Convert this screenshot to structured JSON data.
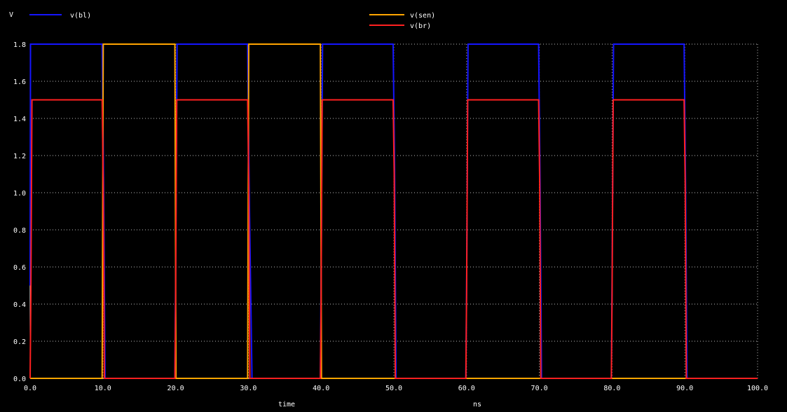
{
  "chart_data": {
    "type": "line",
    "y_unit": "V",
    "xlabel": "time",
    "x_unit": "ns",
    "xlim": [
      0,
      100
    ],
    "ylim": [
      0,
      1.8
    ],
    "x_ticks": [
      "0.0",
      "10.0",
      "20.0",
      "30.0",
      "40.0",
      "50.0",
      "60.0",
      "70.0",
      "80.0",
      "90.0",
      "100.0"
    ],
    "y_ticks": [
      "0.0",
      "0.2",
      "0.4",
      "0.6",
      "0.8",
      "1.0",
      "1.2",
      "1.4",
      "1.6",
      "1.8"
    ],
    "grid": true,
    "legend_placement": "top",
    "series": [
      {
        "name": "v(bl)",
        "color": "#1515ff",
        "x": [
          0,
          0.05,
          0.2,
          9.9,
          10.1,
          10.3,
          10.5,
          19.9,
          20.0,
          20.2,
          29.9,
          30.1,
          30.5,
          39.9,
          40.0,
          40.2,
          49.9,
          50.1,
          50.3,
          59.9,
          60.0,
          60.2,
          69.9,
          70.1,
          70.3,
          79.9,
          80.0,
          80.2,
          89.9,
          90.1,
          90.3,
          100
        ],
        "y": [
          0.5,
          1.8,
          1.8,
          1.8,
          1.05,
          0.0,
          0.0,
          0.0,
          0.55,
          1.8,
          1.8,
          1.05,
          0.0,
          0.0,
          0.55,
          1.8,
          1.8,
          1.15,
          0.0,
          0.0,
          0.5,
          1.8,
          1.8,
          1.05,
          0.0,
          0.0,
          0.55,
          1.8,
          1.8,
          1.05,
          0.0,
          0.0
        ]
      },
      {
        "name": "v(sen)",
        "color": "#ffa500",
        "x": [
          0,
          9.9,
          10.05,
          19.9,
          20.05,
          29.9,
          30.05,
          39.9,
          40.05,
          49.9,
          50.05,
          59.9,
          60.05,
          69.9,
          70.05,
          79.9,
          80.05,
          89.9,
          90.05,
          100
        ],
        "y": [
          0.0,
          0.0,
          1.8,
          1.8,
          0.0,
          0.0,
          1.8,
          1.8,
          0.0,
          0.0,
          0.0,
          0.0,
          0.0,
          0.0,
          0.0,
          0.0,
          0.0,
          0.0,
          0.0,
          0.0
        ]
      },
      {
        "name": "v(br)",
        "color": "#ff2020",
        "x": [
          0,
          0.1,
          0.25,
          9.9,
          10.05,
          10.2,
          19.9,
          20.0,
          20.15,
          29.9,
          30.05,
          30.2,
          39.9,
          40.0,
          40.15,
          49.9,
          50.05,
          50.2,
          59.9,
          60.0,
          60.15,
          69.9,
          70.05,
          70.2,
          79.9,
          80.0,
          80.15,
          89.9,
          90.05,
          90.2,
          100
        ],
        "y": [
          0.0,
          0.45,
          1.5,
          1.5,
          1.05,
          0.0,
          0.0,
          0.45,
          1.5,
          1.5,
          1.05,
          0.0,
          0.0,
          0.45,
          1.5,
          1.5,
          1.1,
          0.0,
          0.0,
          0.45,
          1.5,
          1.5,
          1.05,
          0.0,
          0.0,
          0.45,
          1.5,
          1.5,
          1.05,
          0.0,
          0.0
        ]
      }
    ]
  }
}
